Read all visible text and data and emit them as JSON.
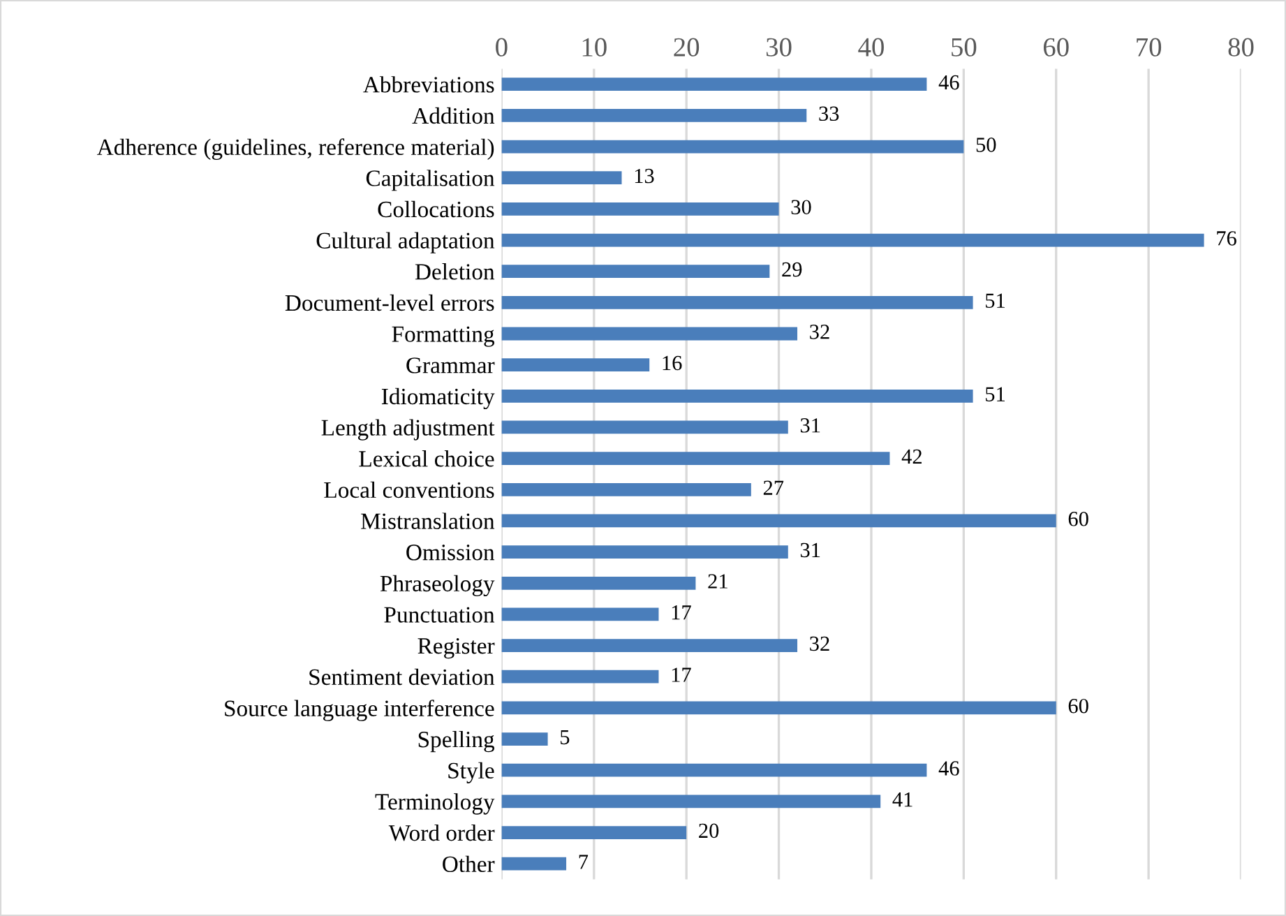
{
  "chart_data": {
    "type": "bar",
    "orientation": "horizontal",
    "categories": [
      "Abbreviations",
      "Addition",
      "Adherence (guidelines, reference material)",
      "Capitalisation",
      "Collocations",
      "Cultural adaptation",
      "Deletion",
      "Document-level errors",
      "Formatting",
      "Grammar",
      "Idiomaticity",
      "Length adjustment",
      "Lexical choice",
      "Local conventions",
      "Mistranslation",
      "Omission",
      "Phraseology",
      "Punctuation",
      "Register",
      "Sentiment deviation",
      "Source language interference",
      "Spelling",
      "Style",
      "Terminology",
      "Word order",
      "Other"
    ],
    "values": [
      46,
      33,
      50,
      13,
      30,
      76,
      29,
      51,
      32,
      16,
      51,
      31,
      42,
      27,
      60,
      31,
      21,
      17,
      32,
      17,
      60,
      5,
      46,
      41,
      20,
      7
    ],
    "color": "#4a7ebb",
    "xlim": [
      0,
      80
    ],
    "xticks": [
      0,
      10,
      20,
      30,
      40,
      50,
      60,
      70,
      80
    ],
    "grid": "x",
    "data_labels": true
  }
}
